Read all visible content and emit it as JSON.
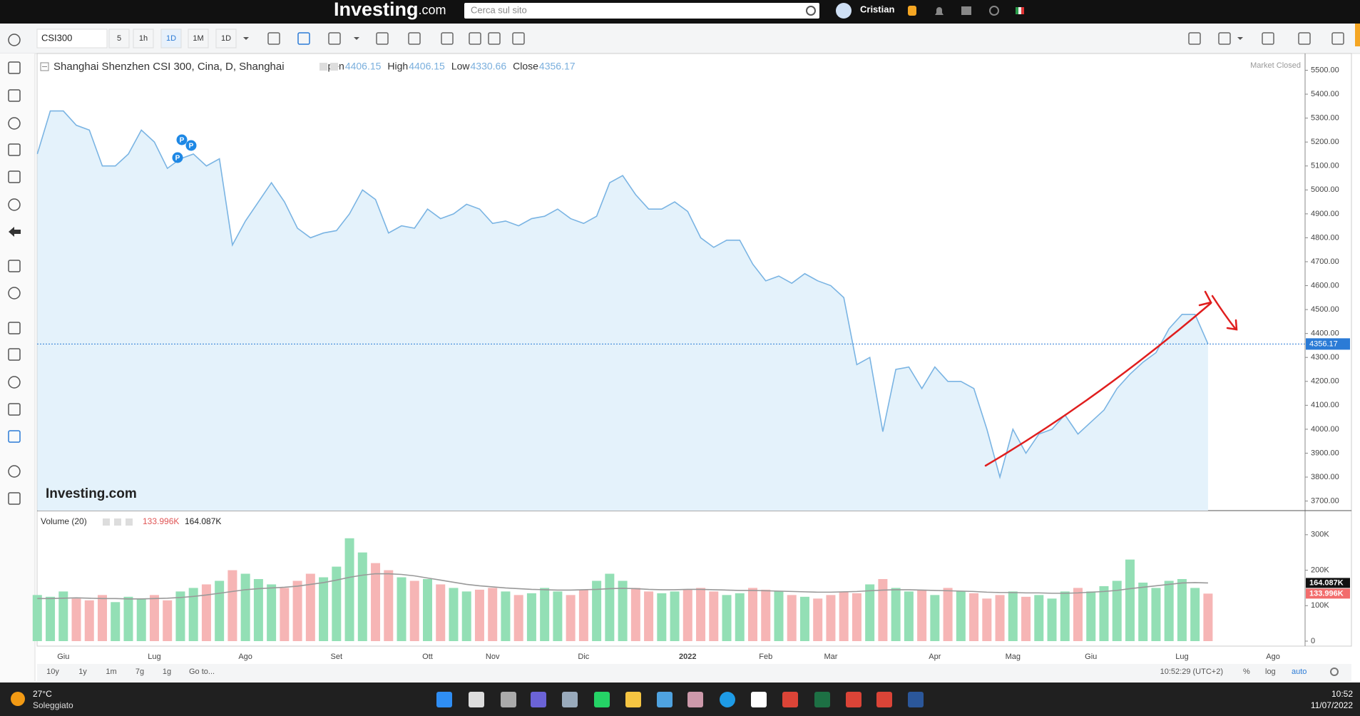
{
  "top_bar": {
    "logo_main": "Investing",
    "logo_suffix": ".com",
    "search_placeholder": "Cerca sul sito",
    "user": "Cristian"
  },
  "toolbar": {
    "symbol": "CSI300",
    "intervals": [
      "5",
      "1h",
      "1D",
      "1M",
      "1D"
    ]
  },
  "watermark": "Investing.com",
  "markers": [
    "P",
    "P",
    "P"
  ],
  "bottom_bar": {
    "ranges": [
      "10y",
      "1y",
      "1m",
      "7g",
      "1g"
    ],
    "goto": "Go to...",
    "time": "10:52:29 (UTC+2)",
    "percent": "%",
    "log": "log",
    "auto": "auto"
  },
  "taskbar": {
    "temperature": "27°C",
    "weather": "Soleggiato",
    "time": "10:52",
    "date": "11/07/2022"
  },
  "chart_data": [
    {
      "type": "area",
      "title": "Shanghai Shenzhen CSI 300, Cina, D, Shanghai",
      "status": "Market Closed",
      "ohlc": [
        {
          "label": "Open",
          "value": 4406.15
        },
        {
          "label": "High",
          "value": 4406.15
        },
        {
          "label": "Low",
          "value": 4330.66
        },
        {
          "label": "Close",
          "value": 4356.17
        }
      ],
      "categories": [
        null,
        null,
        "Giu",
        null,
        null,
        null,
        null,
        null,
        null,
        "Lug",
        null,
        null,
        null,
        null,
        null,
        null,
        "Ago",
        null,
        null,
        null,
        null,
        null,
        null,
        "Set",
        null,
        null,
        null,
        null,
        null,
        null,
        "Ott",
        null,
        null,
        null,
        null,
        "Nov",
        null,
        null,
        null,
        null,
        null,
        null,
        "Dic",
        null,
        null,
        null,
        null,
        null,
        null,
        null,
        "2022",
        null,
        null,
        null,
        null,
        null,
        "Feb",
        null,
        null,
        null,
        null,
        "Mar",
        null,
        null,
        null,
        null,
        null,
        null,
        null,
        "Apr",
        null,
        null,
        null,
        null,
        null,
        "Mag",
        null,
        null,
        null,
        null,
        null,
        "Giu",
        null,
        null,
        null,
        null,
        null,
        null,
        "Lug",
        null,
        null,
        null,
        null,
        null,
        null,
        "Ago",
        null
      ],
      "values": [
        5150,
        5330,
        5330,
        5270,
        5250,
        5100,
        5100,
        5150,
        5250,
        5200,
        5090,
        5130,
        5150,
        5100,
        5130,
        4770,
        4870,
        4950,
        5030,
        4950,
        4840,
        4800,
        4820,
        4830,
        4900,
        5000,
        4960,
        4820,
        4850,
        4840,
        4920,
        4880,
        4900,
        4940,
        4920,
        4860,
        4870,
        4850,
        4880,
        4890,
        4920,
        4880,
        4860,
        4890,
        5030,
        5060,
        4980,
        4920,
        4920,
        4950,
        4910,
        4800,
        4760,
        4790,
        4790,
        4690,
        4620,
        4640,
        4610,
        4650,
        4620,
        4600,
        4550,
        4270,
        4300,
        3990,
        4250,
        4260,
        4170,
        4260,
        4200,
        4200,
        4170,
        4000,
        3800,
        4000,
        3900,
        3980,
        4000,
        4060,
        3980,
        4030,
        4080,
        4170,
        4230,
        4280,
        4320,
        4420,
        4480,
        4480,
        4356.17,
        null,
        null,
        null,
        null,
        null,
        null
      ],
      "color": "#7ab4e3",
      "fill_color": "#e4f2fb",
      "last_color": "#2b7bd6",
      "ylim": [
        3660,
        5570
      ],
      "yticks": [
        {
          "value": 3700,
          "label": "3700.00"
        },
        {
          "value": 3800,
          "label": "3800.00"
        },
        {
          "value": 3900,
          "label": "3900.00"
        },
        {
          "value": 4000,
          "label": "4000.00"
        },
        {
          "value": 4100,
          "label": "4100.00"
        },
        {
          "value": 4200,
          "label": "4200.00"
        },
        {
          "value": 4300,
          "label": "4300.00"
        },
        {
          "value": 4400,
          "label": "4400.00"
        },
        {
          "value": 4500,
          "label": "4500.00"
        },
        {
          "value": 4600,
          "label": "4600.00"
        },
        {
          "value": 4700,
          "label": "4700.00"
        },
        {
          "value": 4800,
          "label": "4800.00"
        },
        {
          "value": 4900,
          "label": "4900.00"
        },
        {
          "value": 5000,
          "label": "5000.00"
        },
        {
          "value": 5100,
          "label": "5100.00"
        },
        {
          "value": 5200,
          "label": "5200.00"
        },
        {
          "value": 5300,
          "label": "5300.00"
        },
        {
          "value": 5400,
          "label": "5400.00"
        },
        {
          "value": 5500,
          "label": "5500.00"
        }
      ],
      "grid": false
    },
    {
      "type": "bar",
      "title": "Volume (20)",
      "up_color": "#93dfb5",
      "down_color": "#f6b5b5",
      "series": [
        {
          "color": "#e05555",
          "values": [
            130,
            125,
            140,
            120,
            115,
            130,
            110,
            125,
            120,
            130,
            115,
            140,
            150,
            160,
            170,
            200,
            190,
            175,
            160,
            150,
            170,
            190,
            180,
            210,
            290,
            250,
            220,
            200,
            180,
            170,
            175,
            160,
            150,
            140,
            145,
            150,
            140,
            130,
            135,
            150,
            140,
            130,
            145,
            170,
            190,
            170,
            150,
            140,
            135,
            140,
            145,
            150,
            140,
            130,
            135,
            150,
            145,
            140,
            130,
            125,
            120,
            130,
            140,
            135,
            160,
            175,
            150,
            140,
            145,
            130,
            150,
            140,
            135,
            120,
            130,
            140,
            125,
            130,
            120,
            140,
            150,
            140,
            155,
            170,
            230,
            165,
            150,
            170,
            175,
            150,
            133.996,
            null,
            null,
            null,
            null,
            null,
            null
          ],
          "value_labels": {
            "90": "133.996K"
          }
        },
        {
          "color": "#999999",
          "values": [
            120,
            120,
            121,
            122,
            121,
            120,
            120,
            119,
            119,
            120,
            121,
            123,
            126,
            130,
            135,
            140,
            145,
            148,
            150,
            152,
            155,
            160,
            165,
            172,
            180,
            186,
            190,
            190,
            188,
            184,
            178,
            172,
            166,
            160,
            156,
            153,
            150,
            148,
            146,
            145,
            144,
            144,
            145,
            146,
            148,
            149,
            148,
            146,
            145,
            145,
            146,
            146,
            145,
            144,
            143,
            143,
            142,
            141,
            140,
            139,
            138,
            138,
            139,
            140,
            142,
            144,
            145,
            145,
            144,
            143,
            142,
            141,
            140,
            138,
            137,
            137,
            136,
            136,
            135,
            135,
            136,
            138,
            140,
            143,
            148,
            152,
            156,
            160,
            164,
            165,
            164.087,
            null,
            null,
            null,
            null,
            null,
            null
          ],
          "value_labels": {
            "90": "164.087K"
          }
        }
      ],
      "ylim": [
        0,
        368
      ],
      "yticks": [
        0,
        {
          "value": 100,
          "label": "100K"
        },
        {
          "value": 200,
          "label": "200K"
        },
        {
          "value": 300,
          "label": "300K"
        }
      ]
    }
  ]
}
